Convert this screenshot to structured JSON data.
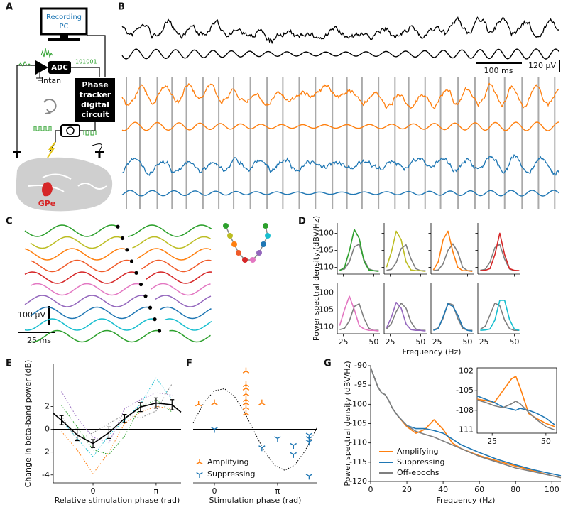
{
  "panel_labels": [
    "A",
    "B",
    "C",
    "D",
    "E",
    "F",
    "G"
  ],
  "diagram": {
    "pc_label": [
      "Recording",
      "PC"
    ],
    "adc": "ADC",
    "bits": "101001",
    "amplifier": "Intan",
    "circuit": [
      "Phase",
      "tracker",
      "digital",
      "circuit"
    ],
    "region": "GPe"
  },
  "scale_bars": {
    "b_time": "100 ms",
    "b_voltage": "120 µV",
    "c_voltage": "100 µV",
    "c_time": "25 ms"
  },
  "chart_data": [
    {
      "type": "line",
      "ylabel": "Power spectral density (dBV/Hz)",
      "xlabel": "Frequency (Hz)",
      "x": [
        22,
        26,
        30,
        34,
        38,
        42,
        46,
        50,
        54
      ],
      "xlim": [
        20,
        55
      ],
      "ylim": [
        -112,
        -97
      ],
      "xticks": [
        25,
        50
      ],
      "yticks": [
        -100,
        -105,
        -110
      ],
      "panels": [
        {
          "series": [
            {
              "color": "#2ca02c",
              "values": [
                -111,
                -110,
                -105.2,
                -98.9,
                -101.5,
                -108.3,
                -110.8,
                -111,
                -111.2
              ]
            },
            {
              "color": "#7f7f7f",
              "values": [
                -110.8,
                -110.5,
                -108.4,
                -104,
                -103.2,
                -107.8,
                -110.5,
                -111,
                -111
              ]
            }
          ]
        },
        {
          "series": [
            {
              "color": "#bcbd22",
              "values": [
                -110,
                -105.5,
                -99.4,
                -101.9,
                -108.4,
                -110.8,
                -111,
                -111,
                -111.2
              ]
            },
            {
              "color": "#7f7f7f",
              "values": [
                -110.9,
                -110.6,
                -108.6,
                -104.5,
                -103.4,
                -107.5,
                -110.4,
                -111,
                -111
              ]
            }
          ]
        },
        {
          "series": [
            {
              "color": "#ff7f0e",
              "values": [
                -110.8,
                -108.4,
                -101.9,
                -99.4,
                -105.5,
                -110,
                -111,
                -111,
                -111.2
              ]
            },
            {
              "color": "#7f7f7f",
              "values": [
                -111,
                -110.8,
                -109,
                -105,
                -103.1,
                -105.5,
                -110,
                -111,
                -111
              ]
            }
          ]
        },
        {
          "series": [
            {
              "color": "#d62728",
              "values": [
                -111,
                -110.9,
                -110.4,
                -106.3,
                -100,
                -106.3,
                -110.4,
                -110.9,
                -111
              ]
            },
            {
              "color": "#7f7f7f",
              "values": [
                -110.9,
                -110.6,
                -108.5,
                -104.2,
                -103.3,
                -107.6,
                -110.5,
                -111,
                -111
              ]
            }
          ]
        },
        {
          "series": [
            {
              "color": "#e377c2",
              "values": [
                -109.6,
                -104.9,
                -101,
                -104.9,
                -109.6,
                -110.6,
                -111,
                -111,
                -111.2
              ]
            },
            {
              "color": "#7f7f7f",
              "values": [
                -110.8,
                -110.4,
                -108.2,
                -104,
                -103.2,
                -107.5,
                -110.4,
                -111,
                -111
              ]
            }
          ]
        },
        {
          "series": [
            {
              "color": "#9467bd",
              "values": [
                -110.3,
                -107.1,
                -102.8,
                -104.5,
                -109.1,
                -110.8,
                -111,
                -111,
                -111.2
              ]
            },
            {
              "color": "#7f7f7f",
              "values": [
                -110.6,
                -109,
                -105.5,
                -103,
                -104.5,
                -108.5,
                -110.6,
                -111,
                -111
              ]
            }
          ]
        },
        {
          "series": [
            {
              "color": "#1f77b4",
              "values": [
                -111,
                -110.5,
                -107,
                -103.2,
                -104,
                -106.5,
                -110,
                -111,
                -111.2
              ]
            },
            {
              "color": "#7f7f7f",
              "values": [
                -110.9,
                -110.3,
                -107.5,
                -103,
                -103.5,
                -107.5,
                -110.4,
                -111,
                -111
              ]
            }
          ]
        },
        {
          "series": [
            {
              "color": "#17becf",
              "values": [
                -111,
                -110.9,
                -110.6,
                -108,
                -102.2,
                -102.2,
                -107.8,
                -110.6,
                -111
              ]
            },
            {
              "color": "#7f7f7f",
              "values": [
                -110.7,
                -109.8,
                -106.5,
                -103,
                -103.8,
                -108,
                -110.5,
                -111,
                -111
              ]
            }
          ]
        }
      ]
    },
    {
      "type": "line",
      "ylabel": "Change in beta-band power (dB)",
      "xlabel": "Relative stimulation phase (rad)",
      "xlim": [
        -1.98,
        4.38
      ],
      "ylim": [
        -4.7,
        5.7
      ],
      "xticks": [
        0,
        {
          "value": 3.14,
          "label": "π"
        }
      ],
      "yticks": [
        -4,
        -2,
        0,
        2
      ],
      "zero_line": true,
      "x": [
        -1.57,
        -0.79,
        0,
        0.79,
        1.57,
        2.36,
        3.14,
        3.93
      ],
      "series": [
        {
          "color": "#ff7f0e",
          "style": "dotted",
          "values": [
            -0.2,
            -1.8,
            -3.9,
            -2,
            0.5,
            1.5,
            2,
            1.8
          ]
        },
        {
          "color": "#9467bd",
          "style": "dotted",
          "values": [
            3.3,
            1,
            -0.7,
            -1.2,
            1.8,
            2.6,
            3.2,
            3
          ]
        },
        {
          "color": "#17becf",
          "style": "dotted",
          "values": [
            0.8,
            -0.8,
            -2.4,
            -0.5,
            0.8,
            2.2,
            4.5,
            2.6
          ]
        },
        {
          "color": "#2ca02c",
          "style": "dotted",
          "values": [
            2.1,
            0.2,
            -1.8,
            -2.2,
            -0.6,
            2,
            2.6,
            1.5
          ]
        },
        {
          "color": "#7f7f7f",
          "style": "dotted",
          "values": [
            1.2,
            -1,
            -0.3,
            0.5,
            1.3,
            1,
            1.6,
            4
          ]
        },
        {
          "color": "#000000",
          "x": [
            -1.98,
            -1.57,
            -0.79,
            0,
            0.79,
            1.57,
            2.36,
            3.14,
            3.93,
            4.38
          ],
          "values": [
            1.4,
            0.8,
            -0.5,
            -1.25,
            -0.3,
            0.95,
            1.95,
            2.3,
            2.15,
            1.5
          ],
          "errors": [
            null,
            0.4,
            0.5,
            0.35,
            0.5,
            0.35,
            0.4,
            0.45,
            0.45,
            null
          ]
        }
      ]
    },
    {
      "type": "scatter",
      "xlabel": "Stimulation phase (rad)",
      "xlim": [
        -1.06,
        5.12
      ],
      "ylim": [
        -4.7,
        5.7
      ],
      "xticks": [
        0,
        {
          "value": 3.14,
          "label": "π"
        }
      ],
      "zero_line": true,
      "series": [
        {
          "name": "Amplifying",
          "color": "#ff7f0e",
          "marker": "tri_up",
          "x": [
            -0.79,
            0,
            1.57,
            1.57,
            1.57,
            1.57,
            1.57,
            1.57,
            1.57,
            1.57,
            2.36
          ],
          "values": [
            2.2,
            2.3,
            5.1,
            3.9,
            3.6,
            3.1,
            2.6,
            2.3,
            1.9,
            1.4,
            2.3
          ]
        },
        {
          "name": "Suppressing",
          "color": "#1f77b4",
          "marker": "tri_down",
          "x": [
            0,
            2.36,
            3.14,
            3.93,
            3.93,
            4.71,
            4.71,
            4.71,
            4.71
          ],
          "values": [
            0,
            -1.6,
            -0.8,
            -1.4,
            -2.2,
            -0.5,
            -0.8,
            -1.1,
            -4.1
          ]
        }
      ],
      "fit": {
        "color": "#000000",
        "style": "dotted",
        "x": [
          -1.06,
          -0.5,
          0,
          0.5,
          1,
          1.5,
          2,
          2.5,
          3,
          3.5,
          4,
          4.5,
          5.12
        ],
        "values": [
          0.57,
          2.4,
          3.38,
          3.56,
          2.87,
          1.47,
          -0.28,
          -1.97,
          -3.17,
          -3.6,
          -3.13,
          -1.92,
          0.2
        ]
      }
    },
    {
      "type": "line",
      "ylabel": "Power spectral density (dBV/Hz)",
      "xlabel": "Frequency (Hz)",
      "legend": "lower left",
      "xlim": [
        0,
        105
      ],
      "ylim": [
        -120,
        -90
      ],
      "xticks": [
        0,
        20,
        40,
        60,
        80,
        100
      ],
      "yticks": [
        -90,
        -95,
        -100,
        -105,
        -110,
        -115,
        -120
      ],
      "x": [
        0,
        2,
        4,
        6,
        8,
        10,
        12,
        15,
        20,
        25,
        30,
        35,
        40,
        45,
        50,
        60,
        70,
        80,
        90,
        100,
        105
      ],
      "series": [
        {
          "name": "Amplifying",
          "color": "#ff7f0e",
          "values": [
            -90.5,
            -93,
            -95.5,
            -97,
            -97.5,
            -99,
            -101,
            -103,
            -105.8,
            -107.5,
            -106.5,
            -104,
            -106.5,
            -110,
            -111.5,
            -113.3,
            -114.7,
            -116,
            -117.3,
            -118.5,
            -119
          ]
        },
        {
          "name": "Suppressing",
          "color": "#1f77b4",
          "values": [
            -90.5,
            -93,
            -95.5,
            -97,
            -97.5,
            -99,
            -101,
            -103,
            -105.5,
            -106.3,
            -106.3,
            -106.8,
            -107.5,
            -109,
            -110.5,
            -112.5,
            -114.3,
            -115.7,
            -117,
            -118,
            -118.5
          ]
        },
        {
          "name": "Off-epochs",
          "color": "#7f7f7f",
          "values": [
            -90.5,
            -93,
            -95.5,
            -97,
            -97.5,
            -99,
            -101,
            -103,
            -105.5,
            -107,
            -107.8,
            -108.5,
            -109.5,
            -110.5,
            -111.5,
            -113.5,
            -115,
            -116.5,
            -117.5,
            -118.5,
            -119
          ]
        }
      ],
      "inset": {
        "xlim": [
          18,
          55
        ],
        "ylim": [
          -111.5,
          -101.5
        ],
        "xticks": [
          25,
          50
        ],
        "yticks": [
          -102,
          -105,
          -108,
          -111
        ],
        "x": [
          18,
          22,
          26,
          30,
          34,
          36,
          38,
          42,
          46,
          50,
          54
        ],
        "series": [
          {
            "color": "#ff7f0e",
            "values": [
              -106.3,
              -106.5,
              -106.8,
              -105,
              -103.2,
              -102.8,
              -104.5,
              -108.5,
              -109.3,
              -110,
              -110.5
            ]
          },
          {
            "color": "#1f77b4",
            "values": [
              -105.8,
              -106.3,
              -106.8,
              -107.5,
              -107.8,
              -108,
              -107.7,
              -108,
              -108.5,
              -109.2,
              -110.2
            ]
          },
          {
            "color": "#7f7f7f",
            "values": [
              -106.4,
              -106.8,
              -107.3,
              -107.6,
              -107,
              -106.6,
              -107,
              -108.3,
              -109.5,
              -110.5,
              -111
            ]
          }
        ]
      }
    }
  ]
}
